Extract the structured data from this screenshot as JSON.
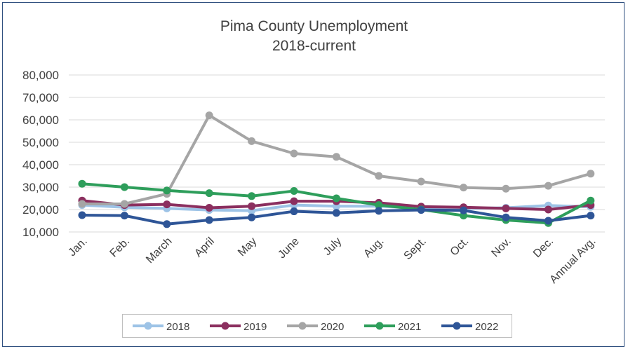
{
  "chart_data": {
    "type": "line",
    "title": "Pima County Unemployment",
    "subtitle": "2018-current",
    "categories": [
      "Jan.",
      "Feb.",
      "March",
      "April",
      "May",
      "June",
      "July",
      "Aug.",
      "Sept.",
      "Oct.",
      "Nov.",
      "Dec.",
      "Annual Avg."
    ],
    "ylim": [
      10000,
      80000
    ],
    "yticks": [
      "10,000",
      "20,000",
      "30,000",
      "40,000",
      "50,000",
      "60,000",
      "70,000",
      "80,000"
    ],
    "ytick_values": [
      10000,
      20000,
      30000,
      40000,
      50000,
      60000,
      70000,
      80000
    ],
    "grid": true,
    "legend_position": "bottom",
    "series": [
      {
        "name": "2018",
        "color": "#9dc3e6",
        "values": [
          22000,
          21000,
          20500,
          19800,
          19500,
          22000,
          21500,
          21500,
          20500,
          20500,
          20800,
          21800,
          21200
        ]
      },
      {
        "name": "2019",
        "color": "#8b2f5f",
        "values": [
          24000,
          22000,
          22300,
          20800,
          21500,
          23700,
          23700,
          23000,
          21300,
          21000,
          20500,
          20000,
          22000
        ]
      },
      {
        "name": "2020",
        "color": "#a5a5a5",
        "values": [
          22500,
          22500,
          27000,
          62000,
          50500,
          45000,
          43500,
          35000,
          32500,
          29800,
          29300,
          30600,
          36000
        ]
      },
      {
        "name": "2021",
        "color": "#2e9e5b",
        "values": [
          31500,
          30000,
          28500,
          27300,
          26000,
          28300,
          25000,
          22000,
          20000,
          17300,
          15300,
          14000,
          24000
        ]
      },
      {
        "name": "2022",
        "color": "#2e5597",
        "values": [
          17500,
          17300,
          13500,
          15300,
          16500,
          19200,
          18500,
          19400,
          19800,
          19600,
          16500,
          15000,
          17300
        ]
      }
    ]
  }
}
